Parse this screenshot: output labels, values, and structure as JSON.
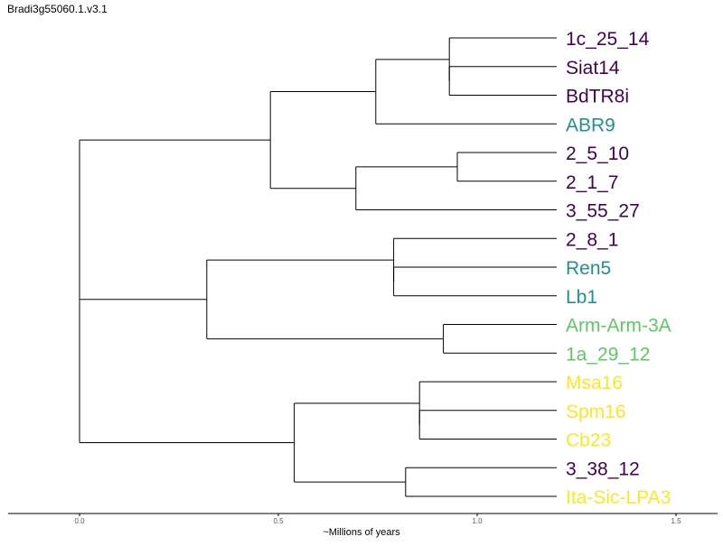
{
  "title": "Bradi3g55060.1.v3.1",
  "chart_data": {
    "type": "dendrogram",
    "xlabel": "~Millions of years",
    "x_ticks": [
      "0.0",
      "0.5",
      "1.0",
      "1.5"
    ],
    "x_tick_values": [
      0.0,
      0.5,
      1.0,
      1.5
    ],
    "xlim": [
      -0.18,
      1.6
    ],
    "colors": {
      "purple": "#440154",
      "teal": "#21918c",
      "green": "#5ec962",
      "yellow": "#fde725"
    },
    "leaves": [
      {
        "label": "1c_25_14",
        "color": "purple"
      },
      {
        "label": "Siat14",
        "color": "purple"
      },
      {
        "label": "BdTR8i",
        "color": "purple"
      },
      {
        "label": "ABR9",
        "color": "teal"
      },
      {
        "label": "2_5_10",
        "color": "purple"
      },
      {
        "label": "2_1_7",
        "color": "purple"
      },
      {
        "label": "3_55_27",
        "color": "purple"
      },
      {
        "label": "2_8_1",
        "color": "purple"
      },
      {
        "label": "Ren5",
        "color": "teal"
      },
      {
        "label": "Lb1",
        "color": "teal"
      },
      {
        "label": "Arm-Arm-3A",
        "color": "green"
      },
      {
        "label": "1a_29_12",
        "color": "green"
      },
      {
        "label": "Msa16",
        "color": "yellow"
      },
      {
        "label": "Spm16",
        "color": "yellow"
      },
      {
        "label": "Cb23",
        "color": "yellow"
      },
      {
        "label": "3_38_12",
        "color": "purple"
      },
      {
        "label": "Ita-Sic-LPA3",
        "color": "yellow"
      }
    ],
    "tip_x": 1.2,
    "tree": {
      "x": 0.0,
      "children": [
        {
          "x": 0.0,
          "children": [
            {
              "x": 0.48,
              "children": [
                {
                  "x": 0.745,
                  "children": [
                    {
                      "x": 0.93,
                      "children": [
                        0,
                        {
                          "x": 0.93,
                          "children": [
                            1,
                            2
                          ]
                        }
                      ]
                    },
                    3
                  ]
                },
                {
                  "x": 0.695,
                  "children": [
                    {
                      "x": 0.95,
                      "children": [
                        4,
                        5
                      ]
                    },
                    6
                  ]
                }
              ]
            },
            {
              "x": 0.32,
              "children": [
                {
                  "x": 0.79,
                  "children": [
                    7,
                    {
                      "x": 0.79,
                      "children": [
                        8,
                        9
                      ]
                    }
                  ]
                },
                {
                  "x": 0.915,
                  "children": [
                    10,
                    11
                  ]
                }
              ]
            }
          ]
        },
        {
          "x": 0.54,
          "children": [
            {
              "x": 0.855,
              "children": [
                12,
                {
                  "x": 0.855,
                  "children": [
                    13,
                    14
                  ]
                }
              ]
            },
            {
              "x": 0.82,
              "children": [
                15,
                16
              ]
            }
          ]
        }
      ]
    }
  }
}
